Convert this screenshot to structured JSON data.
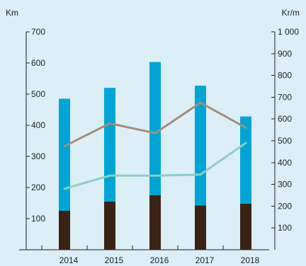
{
  "chart_data": {
    "type": "bar",
    "categories": [
      "2014",
      "2015",
      "2016",
      "2017",
      "2018"
    ],
    "left_axis": {
      "label": "Km",
      "ylim": [
        0,
        700
      ],
      "ticks": [
        100,
        200,
        300,
        400,
        500,
        600,
        700
      ],
      "tick_labels": [
        "100",
        "200",
        "300",
        "400",
        "500",
        "600",
        "700"
      ]
    },
    "right_axis": {
      "label": "Kr/m",
      "ylim": [
        0,
        1000
      ],
      "ticks": [
        100,
        200,
        300,
        400,
        500,
        600,
        700,
        800,
        900,
        1000
      ],
      "tick_labels": [
        "100",
        "200",
        "300",
        "400",
        "500",
        "600",
        "700",
        "800",
        "900",
        "1 000"
      ]
    },
    "stacked_bars": [
      {
        "axis": "left",
        "color": "#3a2214",
        "values": [
          125,
          155,
          175,
          142,
          148
        ]
      },
      {
        "axis": "left",
        "color": "#00a5d6",
        "values": [
          360,
          365,
          428,
          385,
          280
        ]
      }
    ],
    "lines": [
      {
        "axis": "right",
        "color": "#a68d7a",
        "values": [
          475,
          580,
          535,
          675,
          560
        ]
      },
      {
        "axis": "right",
        "color": "#8ccfc1",
        "values": [
          280,
          340,
          340,
          345,
          490
        ]
      }
    ],
    "grid": false
  }
}
